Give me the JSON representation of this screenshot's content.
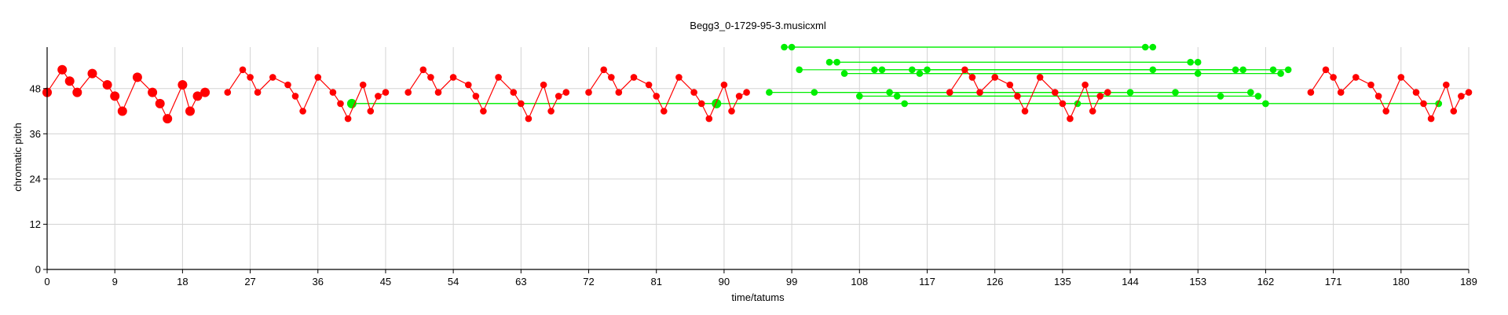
{
  "chart_data": {
    "type": "line",
    "title": "Begg3_0-1729-95-3.musicxml",
    "xlabel": "time/tatums",
    "ylabel": "chromatic pitch",
    "xlim": [
      0,
      189
    ],
    "ylim": [
      0,
      59
    ],
    "xticks": [
      0,
      9,
      18,
      27,
      36,
      45,
      54,
      63,
      72,
      81,
      90,
      99,
      108,
      117,
      126,
      135,
      144,
      153,
      162,
      171,
      180,
      189
    ],
    "yticks": [
      0,
      12,
      24,
      36,
      48
    ],
    "grid": true,
    "colors": {
      "melody": "#ff0000",
      "matches": "#00ee00",
      "grid": "#d3d3d3"
    },
    "series": [
      {
        "kind": "red-melody",
        "segments": [
          [
            [
              0,
              47,
              "L"
            ],
            [
              2,
              53,
              "L"
            ],
            [
              3,
              50,
              "L"
            ],
            [
              4,
              47,
              "L"
            ],
            [
              6,
              52,
              "L"
            ],
            [
              8,
              49,
              "L"
            ],
            [
              9,
              46,
              "L"
            ],
            [
              10,
              42,
              "L"
            ],
            [
              12,
              51,
              "L"
            ],
            [
              14,
              47,
              "L"
            ],
            [
              15,
              44,
              "L"
            ],
            [
              16,
              40,
              "L"
            ],
            [
              18,
              49,
              "L"
            ],
            [
              19,
              42,
              "L"
            ],
            [
              20,
              46,
              "L"
            ],
            [
              21,
              47,
              "L"
            ]
          ],
          [
            [
              24,
              47
            ],
            [
              26,
              53
            ],
            [
              27,
              51
            ],
            [
              28,
              47
            ],
            [
              30,
              51
            ],
            [
              32,
              49
            ],
            [
              33,
              46
            ],
            [
              34,
              42
            ],
            [
              36,
              51
            ],
            [
              38,
              47
            ],
            [
              39,
              44
            ],
            [
              40,
              40
            ],
            [
              42,
              49
            ],
            [
              43,
              42
            ],
            [
              44,
              46
            ],
            [
              45,
              47
            ]
          ],
          [
            [
              48,
              47
            ],
            [
              50,
              53
            ],
            [
              51,
              51
            ],
            [
              52,
              47
            ],
            [
              54,
              51
            ],
            [
              56,
              49
            ],
            [
              57,
              46
            ],
            [
              58,
              42
            ],
            [
              60,
              51
            ],
            [
              62,
              47
            ],
            [
              63,
              44
            ],
            [
              64,
              40
            ],
            [
              66,
              49
            ],
            [
              67,
              42
            ],
            [
              68,
              46
            ],
            [
              69,
              47
            ]
          ],
          [
            [
              72,
              47
            ],
            [
              74,
              53
            ],
            [
              75,
              51
            ],
            [
              76,
              47
            ],
            [
              78,
              51
            ],
            [
              80,
              49
            ],
            [
              81,
              46
            ],
            [
              82,
              42
            ],
            [
              84,
              51
            ],
            [
              86,
              47
            ],
            [
              87,
              44
            ],
            [
              88,
              40
            ],
            [
              90,
              49
            ],
            [
              91,
              42
            ],
            [
              92,
              46
            ],
            [
              93,
              47
            ]
          ],
          [
            [
              120,
              47
            ],
            [
              122,
              53
            ],
            [
              123,
              51
            ],
            [
              124,
              47
            ],
            [
              126,
              51
            ],
            [
              128,
              49
            ],
            [
              129,
              46
            ],
            [
              130,
              42
            ],
            [
              132,
              51
            ],
            [
              134,
              47
            ],
            [
              135,
              44
            ],
            [
              136,
              40
            ],
            [
              138,
              49
            ],
            [
              139,
              42
            ],
            [
              140,
              46
            ],
            [
              141,
              47
            ]
          ],
          [
            [
              168,
              47
            ],
            [
              170,
              53
            ],
            [
              171,
              51
            ],
            [
              172,
              47
            ],
            [
              174,
              51
            ],
            [
              176,
              49
            ],
            [
              177,
              46
            ],
            [
              178,
              42
            ],
            [
              180,
              51
            ],
            [
              182,
              47
            ],
            [
              183,
              44
            ],
            [
              184,
              40
            ],
            [
              186,
              49
            ],
            [
              187,
              42
            ],
            [
              188,
              46
            ],
            [
              189,
              47
            ]
          ]
        ]
      },
      {
        "kind": "green-matches",
        "segments": [
          [
            [
              40.5,
              44,
              "L"
            ],
            [
              89,
              44,
              "L"
            ]
          ],
          [
            [
              40.5,
              44
            ],
            [
              162,
              44
            ]
          ],
          [
            [
              40.5,
              44
            ],
            [
              185,
              44
            ]
          ],
          [
            [
              98,
              59
            ],
            [
              147,
              59
            ]
          ],
          [
            [
              99,
              59
            ],
            [
              146,
              59
            ]
          ],
          [
            [
              100,
              53
            ],
            [
              147,
              53
            ]
          ],
          [
            [
              104,
              55
            ],
            [
              152,
              55
            ]
          ],
          [
            [
              105,
              55
            ],
            [
              153,
              55
            ]
          ],
          [
            [
              106,
              52
            ],
            [
              153,
              52
            ]
          ],
          [
            [
              110,
              53
            ],
            [
              158,
              53
            ]
          ],
          [
            [
              111,
              53
            ],
            [
              159,
              53
            ]
          ],
          [
            [
              115,
              53
            ],
            [
              163,
              53
            ]
          ],
          [
            [
              116,
              52
            ],
            [
              164,
              52
            ]
          ],
          [
            [
              117,
              53
            ],
            [
              165,
              53
            ]
          ],
          [
            [
              96,
              47
            ],
            [
              144,
              47
            ]
          ],
          [
            [
              102,
              47
            ],
            [
              150,
              47
            ]
          ],
          [
            [
              108,
              46
            ],
            [
              156,
              46
            ]
          ],
          [
            [
              112,
              47
            ],
            [
              160,
              47
            ]
          ],
          [
            [
              113,
              46
            ],
            [
              161,
              46
            ]
          ],
          [
            [
              114,
              44
            ],
            [
              162,
              44
            ]
          ],
          [
            [
              137,
              44
            ],
            [
              185,
              44
            ]
          ]
        ]
      }
    ]
  }
}
